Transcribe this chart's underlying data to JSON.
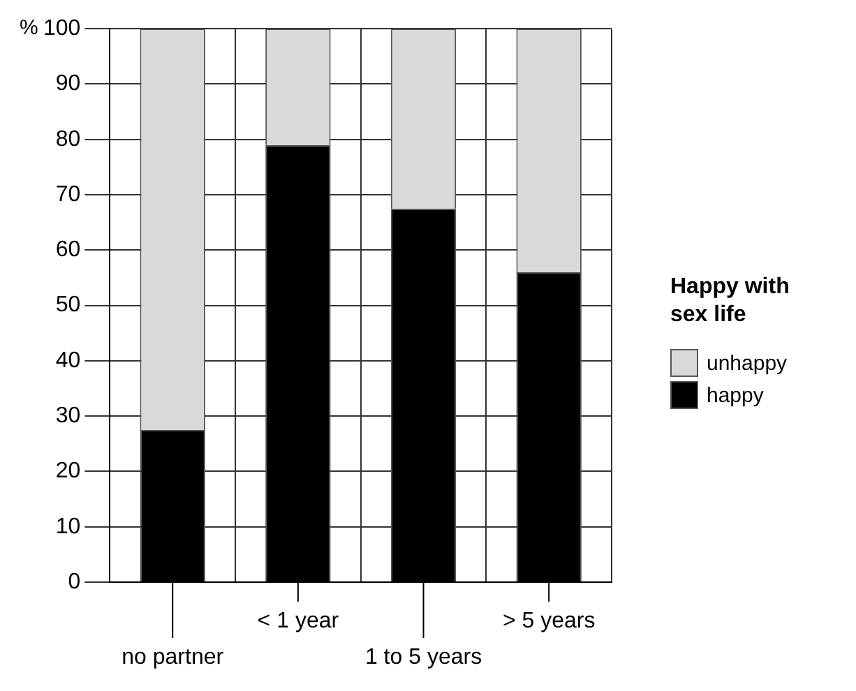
{
  "chart_data": {
    "type": "bar",
    "ylabel": "%",
    "legend_title": "Happy with sex life",
    "categories": [
      "no partner",
      "< 1 year",
      "1 to 5 years",
      "> 5 years"
    ],
    "series": [
      {
        "name": "happy",
        "color": "#000000",
        "values": [
          27.5,
          79,
          67.5,
          56
        ]
      },
      {
        "name": "unhappy",
        "color": "#d9d9db",
        "values": [
          72.5,
          21,
          32.5,
          44
        ]
      }
    ],
    "stacked": true,
    "ylim": [
      0,
      100
    ],
    "yticks": [
      0,
      10,
      20,
      30,
      40,
      50,
      60,
      70,
      80,
      90,
      100
    ],
    "grid": true,
    "legend": "right"
  }
}
